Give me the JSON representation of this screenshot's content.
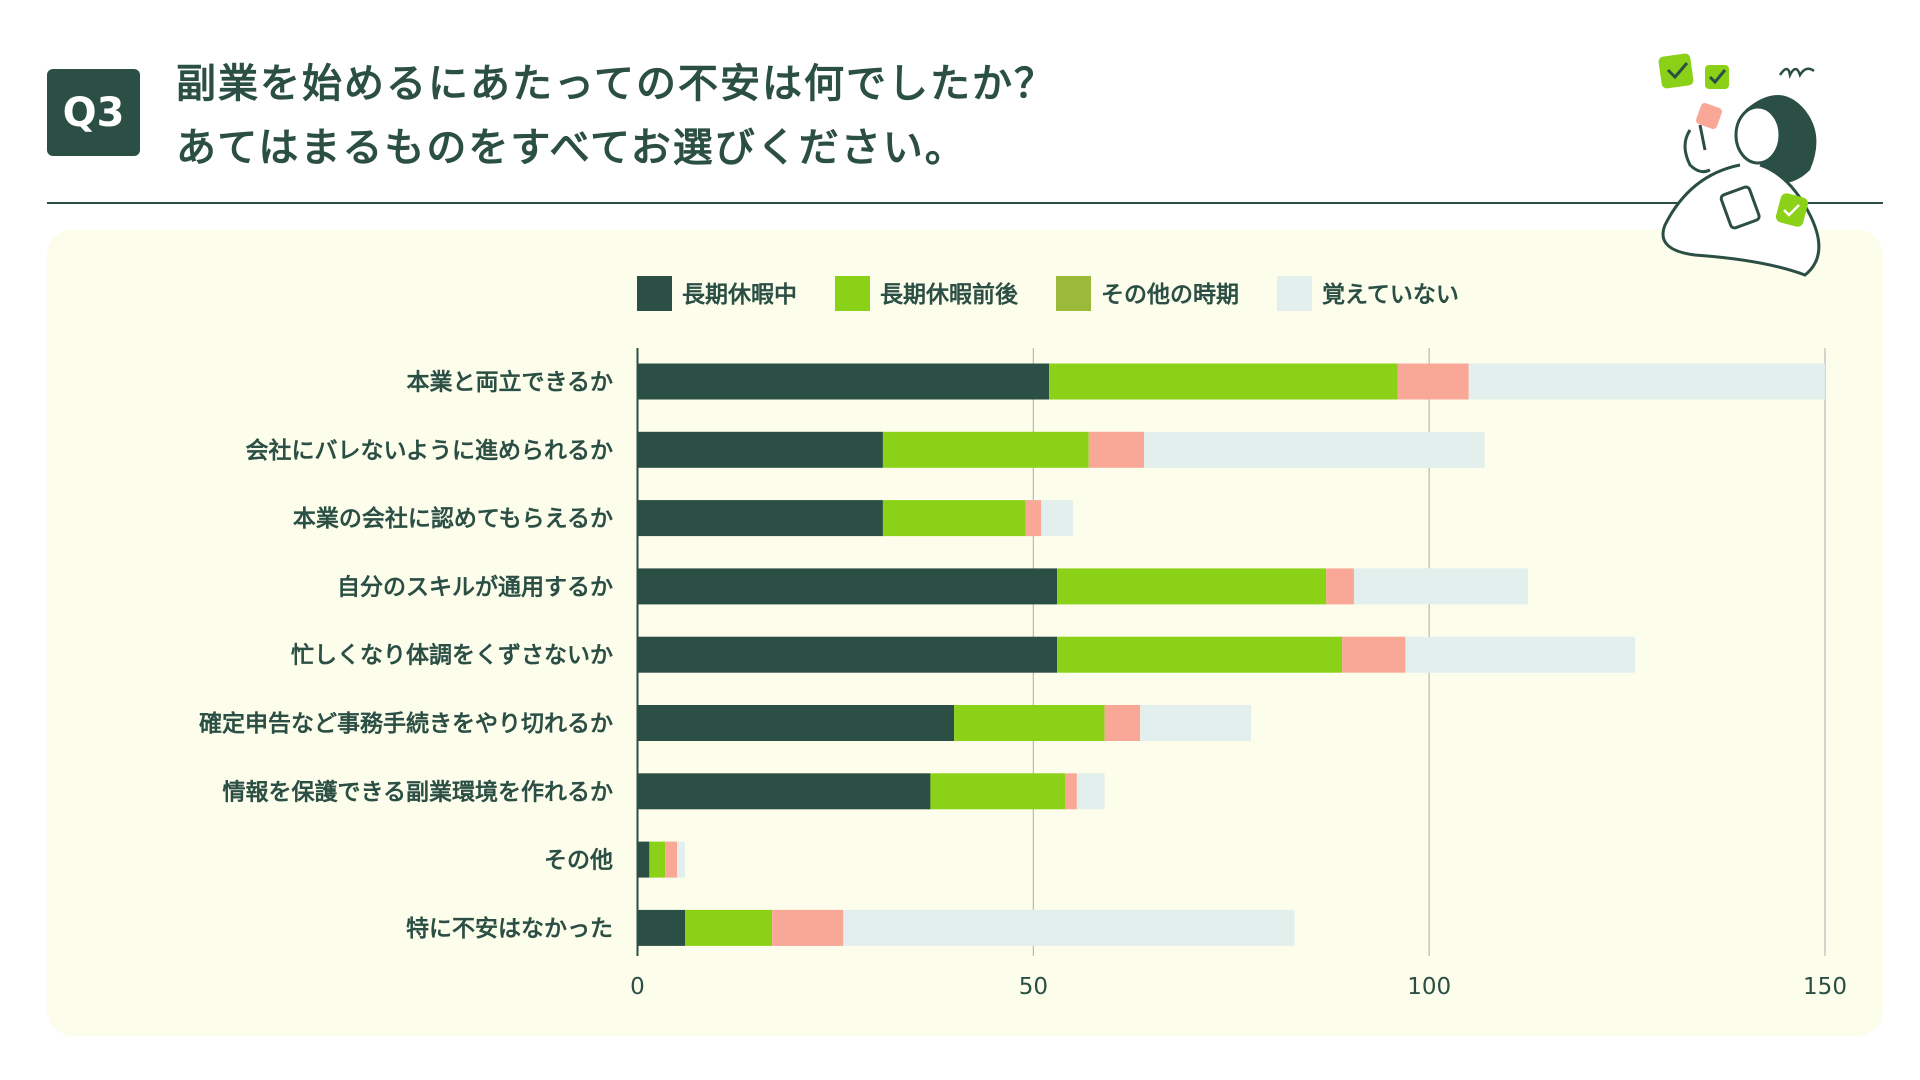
{
  "header": {
    "badge": "Q3",
    "title_line1": "副業を始めるにあたっての不安は何でしたか？",
    "title_line2": "あてはまるものをすべてお選びください。"
  },
  "chart_data": {
    "type": "bar",
    "orientation": "horizontal",
    "stacked": true,
    "categories": [
      "本業と両立できるか",
      "会社にバレないように進められるか",
      "本業の会社に認めてもらえるか",
      "自分のスキルが通用するか",
      "忙しくなり体調をくずさないか",
      "確定申告など事務手続きをやり切れるか",
      "情報を保護できる副業環境を作れるか",
      "その他",
      "特に不安はなかった"
    ],
    "series": [
      {
        "name": "長期休暇中",
        "color": "#2b4f44",
        "values": [
          52,
          31,
          31,
          53,
          53,
          40,
          37,
          1.5,
          6
        ]
      },
      {
        "name": "長期休暇前後",
        "color": "#8bd118",
        "values": [
          44,
          26,
          18,
          34,
          36,
          19,
          17,
          2,
          11
        ]
      },
      {
        "name": "その他の時期",
        "color": "#f9a898",
        "legend_color": "#9bba3a",
        "values": [
          9,
          7,
          2,
          3.5,
          8,
          4.5,
          1.5,
          1.5,
          9
        ]
      },
      {
        "name": "覚えていない",
        "color": "#e3efed",
        "values": [
          45,
          43,
          4,
          22,
          29,
          14,
          3.5,
          1,
          57
        ]
      }
    ],
    "xlim": [
      0,
      150
    ],
    "xticks": [
      "0",
      "50",
      "100",
      "150"
    ],
    "xtick_values": [
      0,
      50,
      100,
      150
    ],
    "grid": true,
    "legend_position": "top"
  }
}
